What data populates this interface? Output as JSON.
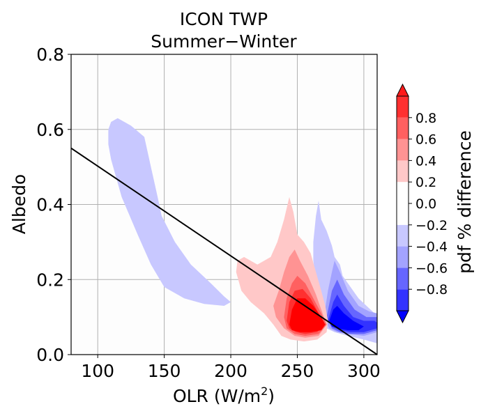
{
  "chart_data": {
    "type": "contour",
    "title": "ICON TWP",
    "subtitle": "Summer−Winter",
    "xlabel_main": "OLR (W/m",
    "xlabel_sup": "2",
    "xlabel_tail": ")",
    "ylabel": "Albedo",
    "xlim": [
      80,
      310
    ],
    "ylim": [
      0.0,
      0.8
    ],
    "x_ticks": [
      100,
      150,
      200,
      250,
      300
    ],
    "y_ticks": [
      0.0,
      0.2,
      0.4,
      0.6,
      0.8
    ],
    "x_tick_labels": [
      "100",
      "150",
      "200",
      "250",
      "300"
    ],
    "y_tick_labels": [
      "0.0",
      "0.2",
      "0.4",
      "0.6",
      "0.8"
    ],
    "grid": true,
    "reference_line": {
      "x": [
        80,
        310
      ],
      "y": [
        0.55,
        0.0
      ],
      "color": "#000000"
    },
    "colorbar": {
      "label": "pdf % difference",
      "levels": [
        -1.0,
        -0.8,
        -0.6,
        -0.4,
        -0.2,
        0.2,
        0.4,
        0.6,
        0.8,
        1.0
      ],
      "colors": [
        "#0000ff",
        "#3333ff",
        "#6666ff",
        "#a3a3ff",
        "#c8c8ff",
        "#ffffff",
        "#ffc8c8",
        "#ff9393",
        "#ff6060",
        "#ff3030",
        "#ff1a1a"
      ],
      "tick_values": [
        -0.8,
        -0.6,
        -0.4,
        -0.2,
        0.0,
        0.2,
        0.4,
        0.6,
        0.8
      ],
      "tick_labels": [
        "−0.8",
        "−0.6",
        "−0.4",
        "−0.2",
        "0.0",
        "0.2",
        "0.4",
        "0.6",
        "0.8"
      ],
      "extend": "both"
    },
    "regions": [
      {
        "level": -0.2,
        "color": "#c8c8ff",
        "points": [
          [
            108,
            0.6
          ],
          [
            110,
            0.62
          ],
          [
            115,
            0.63
          ],
          [
            125,
            0.61
          ],
          [
            135,
            0.58
          ],
          [
            140,
            0.5
          ],
          [
            145,
            0.42
          ],
          [
            148,
            0.37
          ],
          [
            158,
            0.3
          ],
          [
            170,
            0.24
          ],
          [
            185,
            0.19
          ],
          [
            195,
            0.155
          ],
          [
            200,
            0.14
          ],
          [
            195,
            0.13
          ],
          [
            180,
            0.135
          ],
          [
            165,
            0.15
          ],
          [
            150,
            0.18
          ],
          [
            140,
            0.24
          ],
          [
            130,
            0.32
          ],
          [
            118,
            0.42
          ],
          [
            110,
            0.52
          ],
          [
            108,
            0.56
          ]
        ]
      },
      {
        "level": -0.2,
        "color": "#c8c8ff",
        "points": [
          [
            262,
            0.3
          ],
          [
            264,
            0.37
          ],
          [
            266,
            0.41
          ],
          [
            268,
            0.36
          ],
          [
            272,
            0.33
          ],
          [
            276,
            0.29
          ],
          [
            278,
            0.26
          ],
          [
            282,
            0.24
          ],
          [
            284,
            0.21
          ],
          [
            290,
            0.18
          ],
          [
            296,
            0.15
          ],
          [
            302,
            0.13
          ],
          [
            308,
            0.11
          ],
          [
            310,
            0.1
          ],
          [
            310,
            0.03
          ],
          [
            300,
            0.04
          ],
          [
            288,
            0.05
          ],
          [
            278,
            0.06
          ],
          [
            272,
            0.07
          ],
          [
            268,
            0.09
          ],
          [
            266,
            0.14
          ],
          [
            264,
            0.2
          ],
          [
            262,
            0.25
          ]
        ]
      },
      {
        "level": -0.4,
        "color": "#a3a3ff",
        "points": [
          [
            270,
            0.1
          ],
          [
            273,
            0.17
          ],
          [
            276,
            0.22
          ],
          [
            278,
            0.25
          ],
          [
            282,
            0.22
          ],
          [
            288,
            0.17
          ],
          [
            296,
            0.13
          ],
          [
            304,
            0.115
          ],
          [
            310,
            0.11
          ],
          [
            310,
            0.06
          ],
          [
            300,
            0.05
          ],
          [
            288,
            0.055
          ],
          [
            280,
            0.06
          ],
          [
            274,
            0.07
          ]
        ]
      },
      {
        "level": -0.6,
        "color": "#6666ff",
        "points": [
          [
            272,
            0.1
          ],
          [
            276,
            0.17
          ],
          [
            280,
            0.2
          ],
          [
            285,
            0.16
          ],
          [
            293,
            0.12
          ],
          [
            302,
            0.1
          ],
          [
            310,
            0.1
          ],
          [
            310,
            0.065
          ],
          [
            300,
            0.055
          ],
          [
            290,
            0.055
          ],
          [
            282,
            0.06
          ],
          [
            276,
            0.07
          ]
        ]
      },
      {
        "level": -0.8,
        "color": "#3333ff",
        "points": [
          [
            273,
            0.09
          ],
          [
            277,
            0.14
          ],
          [
            280,
            0.16
          ],
          [
            285,
            0.13
          ],
          [
            292,
            0.1
          ],
          [
            300,
            0.09
          ],
          [
            308,
            0.09
          ],
          [
            310,
            0.085
          ],
          [
            310,
            0.07
          ],
          [
            300,
            0.06
          ],
          [
            290,
            0.06
          ],
          [
            282,
            0.065
          ],
          [
            276,
            0.075
          ]
        ]
      },
      {
        "level": -1.0,
        "color": "#0000ff",
        "points": [
          [
            274,
            0.09
          ],
          [
            277,
            0.12
          ],
          [
            280,
            0.13
          ],
          [
            285,
            0.11
          ],
          [
            292,
            0.09
          ],
          [
            300,
            0.075
          ],
          [
            296,
            0.065
          ],
          [
            288,
            0.065
          ],
          [
            280,
            0.07
          ],
          [
            276,
            0.075
          ]
        ]
      },
      {
        "level": 0.2,
        "color": "#ffc8c8",
        "points": [
          [
            204,
            0.22
          ],
          [
            205,
            0.25
          ],
          [
            210,
            0.26
          ],
          [
            220,
            0.24
          ],
          [
            230,
            0.26
          ],
          [
            235,
            0.3
          ],
          [
            240,
            0.36
          ],
          [
            244,
            0.42
          ],
          [
            247,
            0.38
          ],
          [
            250,
            0.32
          ],
          [
            255,
            0.3
          ],
          [
            260,
            0.27
          ],
          [
            264,
            0.22
          ],
          [
            268,
            0.17
          ],
          [
            271,
            0.13
          ],
          [
            273,
            0.09
          ],
          [
            272,
            0.06
          ],
          [
            265,
            0.04
          ],
          [
            255,
            0.035
          ],
          [
            245,
            0.04
          ],
          [
            238,
            0.05
          ],
          [
            232,
            0.08
          ],
          [
            225,
            0.11
          ],
          [
            215,
            0.14
          ],
          [
            208,
            0.17
          ]
        ]
      },
      {
        "level": 0.4,
        "color": "#ff9393",
        "points": [
          [
            232,
            0.13
          ],
          [
            236,
            0.17
          ],
          [
            240,
            0.22
          ],
          [
            244,
            0.26
          ],
          [
            248,
            0.28
          ],
          [
            252,
            0.25
          ],
          [
            258,
            0.21
          ],
          [
            264,
            0.16
          ],
          [
            268,
            0.12
          ],
          [
            272,
            0.08
          ],
          [
            266,
            0.05
          ],
          [
            256,
            0.045
          ],
          [
            248,
            0.05
          ],
          [
            240,
            0.07
          ],
          [
            234,
            0.1
          ]
        ]
      },
      {
        "level": 0.6,
        "color": "#ff6060",
        "points": [
          [
            240,
            0.1
          ],
          [
            242,
            0.15
          ],
          [
            246,
            0.19
          ],
          [
            250,
            0.21
          ],
          [
            256,
            0.19
          ],
          [
            262,
            0.15
          ],
          [
            268,
            0.11
          ],
          [
            272,
            0.08
          ],
          [
            266,
            0.055
          ],
          [
            256,
            0.05
          ],
          [
            248,
            0.055
          ],
          [
            242,
            0.07
          ]
        ]
      },
      {
        "level": 0.8,
        "color": "#ff3030",
        "points": [
          [
            242,
            0.09
          ],
          [
            244,
            0.14
          ],
          [
            248,
            0.17
          ],
          [
            254,
            0.175
          ],
          [
            260,
            0.15
          ],
          [
            266,
            0.11
          ],
          [
            270,
            0.08
          ],
          [
            265,
            0.06
          ],
          [
            256,
            0.055
          ],
          [
            249,
            0.06
          ],
          [
            244,
            0.07
          ]
        ]
      },
      {
        "level": 1.0,
        "color": "#ff0000",
        "points": [
          [
            244,
            0.08
          ],
          [
            246,
            0.12
          ],
          [
            250,
            0.15
          ],
          [
            256,
            0.15
          ],
          [
            262,
            0.13
          ],
          [
            268,
            0.1
          ],
          [
            271,
            0.08
          ],
          [
            268,
            0.065
          ],
          [
            260,
            0.06
          ],
          [
            252,
            0.06
          ],
          [
            246,
            0.065
          ]
        ]
      }
    ]
  }
}
